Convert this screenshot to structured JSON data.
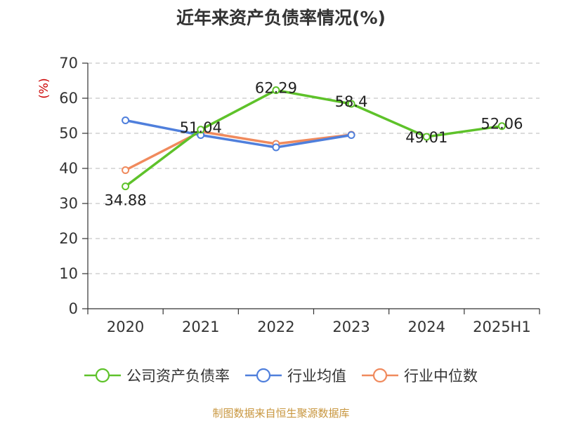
{
  "chart_data": {
    "type": "line",
    "title": "近年来资产负债率情况(%)",
    "ylabel": "(%)",
    "xlabel": "",
    "ylim": [
      0,
      70
    ],
    "yticks": [
      0,
      10,
      20,
      30,
      40,
      50,
      60,
      70
    ],
    "categories": [
      "2020",
      "2021",
      "2022",
      "2023",
      "2024",
      "2025H1"
    ],
    "grid": true,
    "legend_position": "bottom",
    "series": [
      {
        "name": "公司资产负债率",
        "color": "#5ec22a",
        "values": [
          34.88,
          51.04,
          62.29,
          58.4,
          49.01,
          52.06
        ],
        "labels": [
          "34.88",
          "51.04",
          "62.29",
          "58.4",
          "49.01",
          "52.06"
        ]
      },
      {
        "name": "行业均值",
        "color": "#4f7fdc",
        "values": [
          53.7,
          49.5,
          46.0,
          49.5,
          null,
          null
        ]
      },
      {
        "name": "行业中位数",
        "color": "#f08a5d",
        "values": [
          39.5,
          50.5,
          47.0,
          49.6,
          null,
          null
        ]
      }
    ],
    "source": "制图数据来自恒生聚源数据库"
  }
}
